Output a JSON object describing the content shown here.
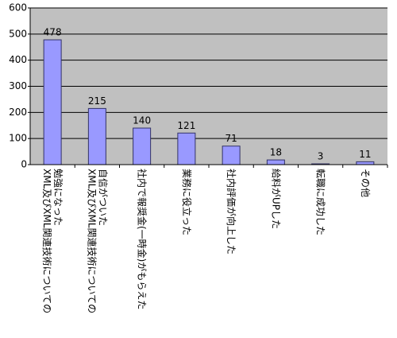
{
  "chart_data": {
    "type": "bar",
    "categories": [
      "XML及びXML関連技術についての\n勉強になった",
      "XML及びXML関連技術についての\n自信がついた",
      "社内で報奨金(一時金)がもらえた",
      "業務に役立った",
      "社内評価が向上した",
      "給料がUPした",
      "転職に成功した",
      "その他"
    ],
    "values": [
      478,
      215,
      140,
      121,
      71,
      18,
      3,
      11
    ],
    "color": "#9999ff",
    "ylim": [
      0,
      600
    ],
    "yticks": [
      0,
      100,
      200,
      300,
      400,
      500,
      600
    ],
    "grid": true
  }
}
